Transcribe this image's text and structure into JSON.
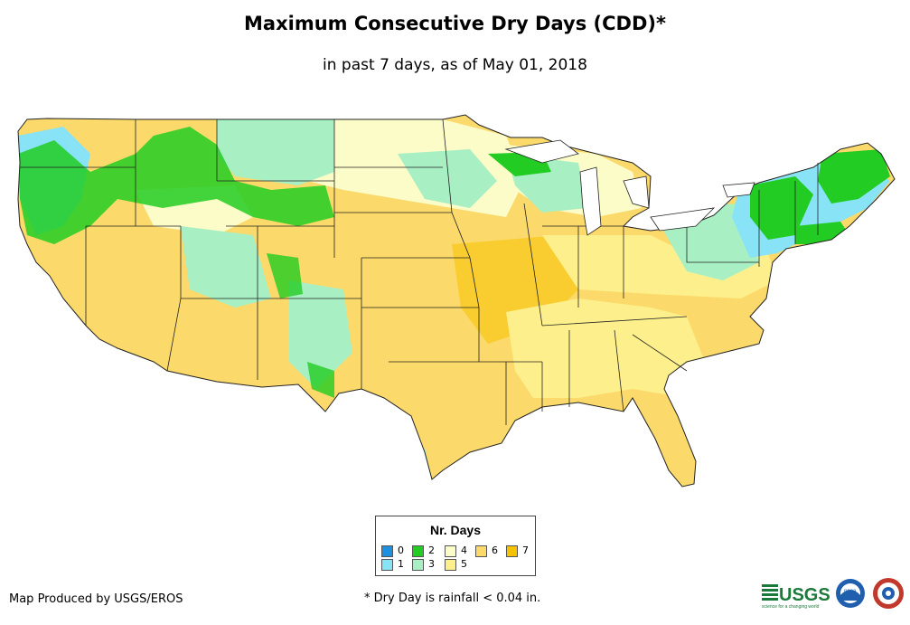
{
  "title": "Maximum Consecutive Dry Days (CDD)*",
  "subtitle": "in past 7 days, as of May 01, 2018",
  "legend": {
    "title": "Nr. Days",
    "items": [
      {
        "label": "0",
        "color": "#1e90e0"
      },
      {
        "label": "1",
        "color": "#87e3f5"
      },
      {
        "label": "2",
        "color": "#22cc22"
      },
      {
        "label": "3",
        "color": "#a8efc4"
      },
      {
        "label": "4",
        "color": "#fbfcc8"
      },
      {
        "label": "5",
        "color": "#fdf08c"
      },
      {
        "label": "6",
        "color": "#fbd96a"
      },
      {
        "label": "7",
        "color": "#f7c300"
      }
    ]
  },
  "footer": {
    "credit": "Map Produced by USGS/EROS",
    "note": "* Dry Day is rainfall < 0.04 in."
  },
  "logos": {
    "usgs": "USGS",
    "usgs_tagline": "science for a changing world",
    "noaa": "noaa",
    "nws_icon": "nws-seal-icon"
  }
}
